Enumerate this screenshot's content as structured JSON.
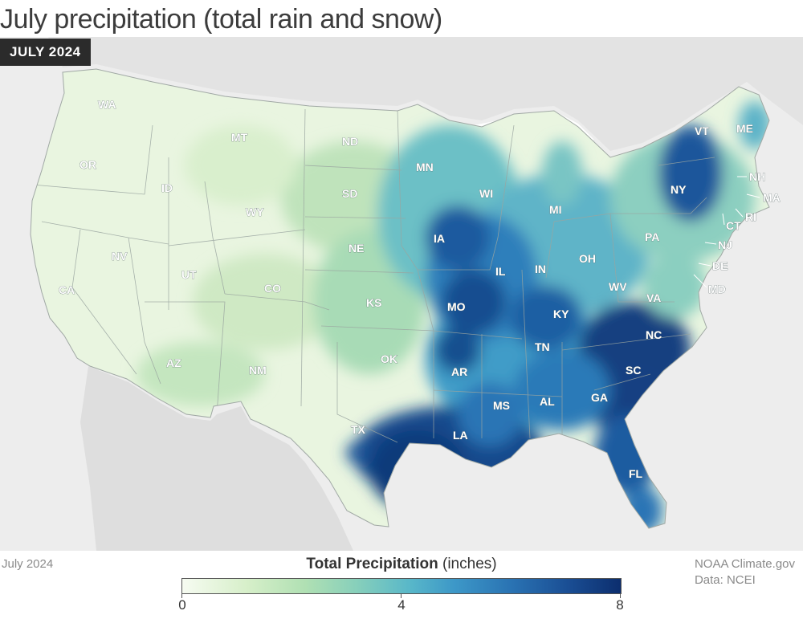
{
  "title": "July precipitation (total rain and snow)",
  "badge": "JULY 2024",
  "footer": {
    "date": "July 2024",
    "source_line1": "NOAA Climate.gov",
    "source_line2": "Data: NCEI"
  },
  "legend": {
    "title_bold": "Total Precipitation",
    "title_units": " (inches)",
    "ticks": [
      "0",
      "4",
      "8"
    ],
    "range": [
      0,
      8
    ],
    "colors": [
      "#f6fbf1",
      "#b0e0b3",
      "#58b7c9",
      "#2a73b3",
      "#0c2e6e"
    ]
  },
  "states": [
    "WA",
    "OR",
    "CA",
    "MT",
    "ID",
    "NV",
    "WY",
    "UT",
    "AZ",
    "CO",
    "NM",
    "ND",
    "SD",
    "NE",
    "KS",
    "OK",
    "TX",
    "MN",
    "IA",
    "MO",
    "AR",
    "LA",
    "WI",
    "IL",
    "MI",
    "IN",
    "KY",
    "TN",
    "MS",
    "AL",
    "GA",
    "FL",
    "SC",
    "NC",
    "OH",
    "WV",
    "VA",
    "PA",
    "NY",
    "VT",
    "ME",
    "NH",
    "MA",
    "RI",
    "CT",
    "NJ",
    "DE",
    "MD"
  ]
}
